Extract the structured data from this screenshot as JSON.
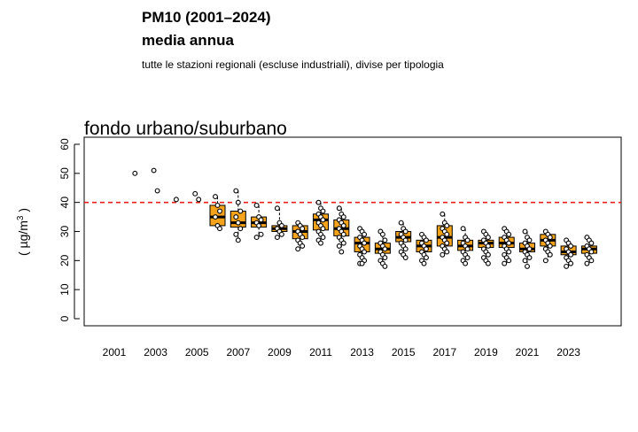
{
  "header": {
    "title": "PM10 (2001–2024)",
    "subtitle": "media annua",
    "note": "tutte le stazioni regionali (escluse industriali), divise per tipologia"
  },
  "chart_data": {
    "type": "boxplot",
    "title": "fondo urbano/suburbano",
    "ylabel_prefix": "( µg/m",
    "ylabel_sup": "3",
    "ylabel_suffix": " )",
    "ylim": [
      0,
      60
    ],
    "yticks": [
      0,
      10,
      20,
      30,
      40,
      50,
      60
    ],
    "xlim": [
      2001,
      2024
    ],
    "xticks": [
      2001,
      2003,
      2005,
      2007,
      2009,
      2011,
      2013,
      2015,
      2017,
      2019,
      2021,
      2023
    ],
    "threshold": 40,
    "threshold_color": "#e8221b",
    "box_color": "#f5a31a",
    "grid": false,
    "legend": "none",
    "years": [
      {
        "x": 2002,
        "points": [
          50
        ]
      },
      {
        "x": 2003,
        "points": [
          51,
          44
        ]
      },
      {
        "x": 2004,
        "points": [
          41
        ]
      },
      {
        "x": 2005,
        "points": [
          43,
          41
        ]
      },
      {
        "x": 2006,
        "q1": 32,
        "median": 35,
        "q3": 39,
        "min": 31,
        "max": 42,
        "points": [
          42,
          39,
          37,
          35,
          32,
          31
        ]
      },
      {
        "x": 2007,
        "q1": 31.5,
        "median": 33,
        "q3": 37,
        "min": 27,
        "max": 44,
        "points": [
          44,
          40,
          37,
          35,
          33,
          31,
          29,
          27
        ]
      },
      {
        "x": 2008,
        "q1": 31.5,
        "median": 33,
        "q3": 35,
        "min": 28,
        "max": 39,
        "points": [
          39,
          35,
          34,
          33,
          32,
          29,
          28
        ]
      },
      {
        "x": 2009,
        "q1": 30,
        "median": 31,
        "q3": 32,
        "min": 28,
        "max": 38,
        "points": [
          38,
          33,
          32,
          31,
          30,
          29,
          28
        ]
      },
      {
        "x": 2010,
        "q1": 27.5,
        "median": 30,
        "q3": 32,
        "min": 24,
        "max": 33,
        "points": [
          33,
          32,
          31,
          30,
          29,
          28,
          27,
          26,
          25,
          24
        ]
      },
      {
        "x": 2011,
        "q1": 30.5,
        "median": 34,
        "q3": 36,
        "min": 26,
        "max": 40,
        "points": [
          40,
          38,
          37,
          36,
          35,
          34,
          33,
          32,
          31,
          30,
          29,
          28,
          27,
          26
        ]
      },
      {
        "x": 2012,
        "q1": 28.5,
        "median": 31,
        "q3": 34,
        "min": 23,
        "max": 38,
        "points": [
          38,
          36,
          35,
          34,
          33,
          32,
          31,
          30,
          29,
          28,
          27,
          26,
          25,
          23
        ]
      },
      {
        "x": 2013,
        "q1": 23,
        "median": 26,
        "q3": 28,
        "min": 19,
        "max": 31,
        "points": [
          31,
          30,
          29,
          28,
          27,
          26,
          25,
          24,
          23,
          22,
          21,
          20,
          19,
          19
        ]
      },
      {
        "x": 2014,
        "q1": 22.5,
        "median": 24,
        "q3": 26,
        "min": 18,
        "max": 30,
        "points": [
          30,
          29,
          27,
          26,
          25,
          24,
          23,
          22,
          21,
          20,
          19,
          18
        ]
      },
      {
        "x": 2015,
        "q1": 26.5,
        "median": 28,
        "q3": 30,
        "min": 21,
        "max": 33,
        "points": [
          33,
          31,
          30,
          29,
          28,
          27,
          26,
          25,
          24,
          23,
          22,
          21
        ]
      },
      {
        "x": 2016,
        "q1": 23,
        "median": 25,
        "q3": 27,
        "min": 19,
        "max": 29,
        "points": [
          29,
          28,
          27,
          26,
          25,
          24,
          23,
          22,
          21,
          20,
          19
        ]
      },
      {
        "x": 2017,
        "q1": 25,
        "median": 28,
        "q3": 32,
        "min": 22,
        "max": 36,
        "points": [
          36,
          33,
          32,
          31,
          30,
          29,
          28,
          27,
          26,
          25,
          24,
          23,
          22
        ]
      },
      {
        "x": 2018,
        "q1": 23.5,
        "median": 25,
        "q3": 27,
        "min": 19,
        "max": 31,
        "points": [
          31,
          28,
          27,
          26,
          25,
          24,
          23,
          22,
          21,
          20,
          19
        ]
      },
      {
        "x": 2019,
        "q1": 24.5,
        "median": 26,
        "q3": 27,
        "min": 19,
        "max": 30,
        "points": [
          30,
          29,
          28,
          27,
          26,
          25,
          24,
          23,
          22,
          21,
          20,
          19
        ]
      },
      {
        "x": 2020,
        "q1": 24.5,
        "median": 26,
        "q3": 28,
        "min": 19,
        "max": 31,
        "points": [
          31,
          30,
          29,
          28,
          27,
          26,
          25,
          24,
          23,
          22,
          21,
          20,
          19
        ]
      },
      {
        "x": 2021,
        "q1": 23,
        "median": 24,
        "q3": 26,
        "min": 18,
        "max": 30,
        "points": [
          30,
          28,
          27,
          26,
          25,
          24,
          23,
          22,
          21,
          20,
          18
        ]
      },
      {
        "x": 2022,
        "q1": 25,
        "median": 27,
        "q3": 29,
        "min": 20,
        "max": 30,
        "points": [
          30,
          29,
          28,
          27,
          26,
          25,
          24,
          23,
          22,
          20
        ]
      },
      {
        "x": 2023,
        "q1": 22,
        "median": 23,
        "q3": 25,
        "min": 18,
        "max": 27,
        "points": [
          27,
          26,
          25,
          24,
          23,
          22,
          21,
          20,
          19,
          18
        ]
      },
      {
        "x": 2024,
        "q1": 22.5,
        "median": 24,
        "q3": 25,
        "min": 19,
        "max": 28,
        "points": [
          28,
          27,
          26,
          25,
          24,
          23,
          22,
          21,
          20,
          19
        ]
      }
    ]
  }
}
